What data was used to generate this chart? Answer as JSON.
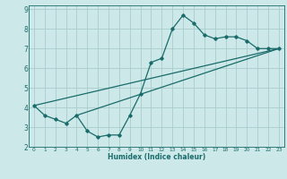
{
  "xlabel": "Humidex (Indice chaleur)",
  "bg_color": "#cce8e8",
  "grid_color": "#aacccc",
  "line_color": "#1a6b6b",
  "spine_color": "#1a6b6b",
  "xlim": [
    -0.5,
    23.5
  ],
  "ylim": [
    2,
    9.2
  ],
  "xticks": [
    0,
    1,
    2,
    3,
    4,
    5,
    6,
    7,
    8,
    9,
    10,
    11,
    12,
    13,
    14,
    15,
    16,
    17,
    18,
    19,
    20,
    21,
    22,
    23
  ],
  "yticks": [
    2,
    3,
    4,
    5,
    6,
    7,
    8,
    9
  ],
  "curve_x": [
    0,
    1,
    2,
    3,
    4,
    5,
    6,
    7,
    8,
    9,
    10,
    11,
    12,
    13,
    14,
    15,
    16,
    17,
    18,
    19,
    20,
    21,
    22,
    23
  ],
  "curve_y": [
    4.1,
    3.6,
    3.4,
    3.2,
    3.6,
    2.8,
    2.5,
    2.6,
    2.6,
    3.6,
    4.7,
    6.3,
    6.5,
    8.0,
    8.7,
    8.3,
    7.7,
    7.5,
    7.6,
    7.6,
    7.4,
    7.0,
    7.0,
    7.0
  ],
  "line1_x": [
    0,
    23
  ],
  "line1_y": [
    4.1,
    7.0
  ],
  "line2_x": [
    4,
    23
  ],
  "line2_y": [
    3.6,
    7.0
  ]
}
